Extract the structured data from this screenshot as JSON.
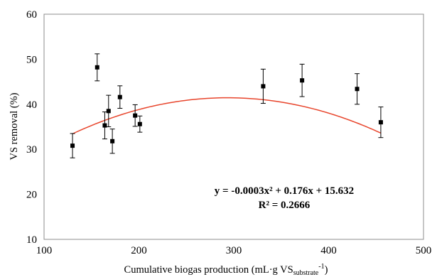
{
  "chart_data": {
    "type": "scatter",
    "xlim": [
      100,
      500
    ],
    "ylim": [
      10,
      60
    ],
    "xticks": [
      100,
      200,
      300,
      400,
      500
    ],
    "yticks": [
      10,
      20,
      30,
      40,
      50,
      60
    ],
    "xlabel_main": "Cumulative biogas production (mL·g VS",
    "xlabel_sub": "substrate",
    "xlabel_sup": "-1",
    "xlabel_close": ")",
    "ylabel": "VS removal (%)",
    "grid": false,
    "points": [
      {
        "x": 130,
        "y": 30.8,
        "err": 2.7
      },
      {
        "x": 156,
        "y": 48.2,
        "err": 3.0
      },
      {
        "x": 164,
        "y": 35.3,
        "err": 3.0
      },
      {
        "x": 168,
        "y": 38.5,
        "err": 3.5
      },
      {
        "x": 172,
        "y": 31.8,
        "err": 2.7
      },
      {
        "x": 180,
        "y": 41.6,
        "err": 2.5
      },
      {
        "x": 196,
        "y": 37.5,
        "err": 2.4
      },
      {
        "x": 201,
        "y": 35.6,
        "err": 1.8
      },
      {
        "x": 331,
        "y": 44.0,
        "err": 3.8
      },
      {
        "x": 372,
        "y": 45.3,
        "err": 3.6
      },
      {
        "x": 430,
        "y": 43.4,
        "err": 3.4
      },
      {
        "x": 455,
        "y": 36.0,
        "err": 3.4
      }
    ],
    "trendline": {
      "type": "polynomial",
      "order": 2,
      "color": "#e8452c",
      "x_range": [
        130,
        455
      ]
    },
    "equation": "y = -0.0003x² + 0.176x + 15.632",
    "r_squared": "R² = 0.2666"
  }
}
